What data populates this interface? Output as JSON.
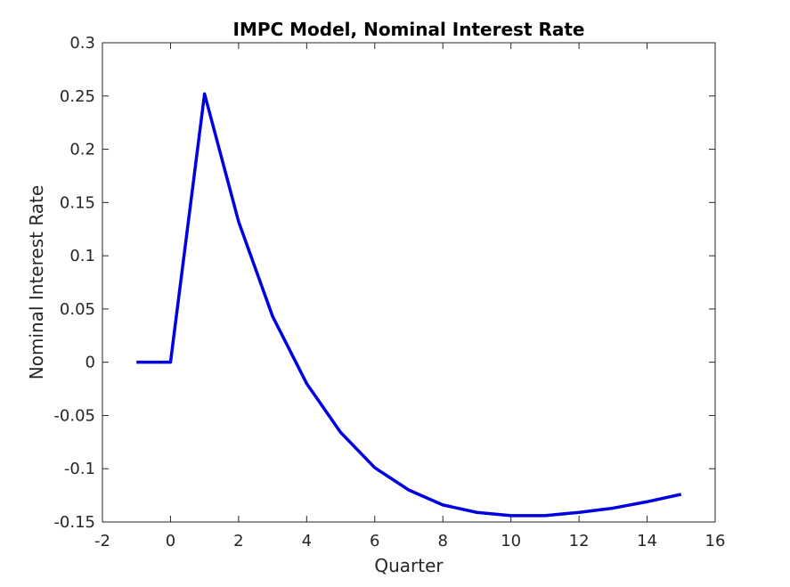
{
  "chart_data": {
    "type": "line",
    "title": "IMPC Model, Nominal Interest Rate",
    "xlabel": "Quarter",
    "ylabel": "Nominal Interest Rate",
    "xlim": [
      -2,
      16
    ],
    "ylim": [
      -0.15,
      0.3
    ],
    "xticks": [
      -2,
      0,
      2,
      4,
      6,
      8,
      10,
      12,
      14,
      16
    ],
    "yticks": [
      -0.15,
      -0.1,
      -0.05,
      0,
      0.05,
      0.1,
      0.15,
      0.2,
      0.25,
      0.3
    ],
    "xtick_labels": [
      "-2",
      "0",
      "2",
      "4",
      "6",
      "8",
      "10",
      "12",
      "14",
      "16"
    ],
    "ytick_labels": [
      "-0.15",
      "-0.1",
      "-0.05",
      "0",
      "0.05",
      "0.1",
      "0.15",
      "0.2",
      "0.25",
      "0.3"
    ],
    "grid": false,
    "series": [
      {
        "name": "Nominal Interest Rate",
        "color": "#0000e0",
        "x": [
          -1,
          0,
          1,
          2,
          3,
          4,
          5,
          6,
          7,
          8,
          9,
          10,
          11,
          12,
          13,
          14,
          15
        ],
        "y": [
          0,
          0,
          0.252,
          0.132,
          0.043,
          -0.02,
          -0.066,
          -0.099,
          -0.12,
          -0.134,
          -0.141,
          -0.144,
          -0.144,
          -0.141,
          -0.137,
          -0.131,
          -0.124
        ]
      }
    ]
  }
}
